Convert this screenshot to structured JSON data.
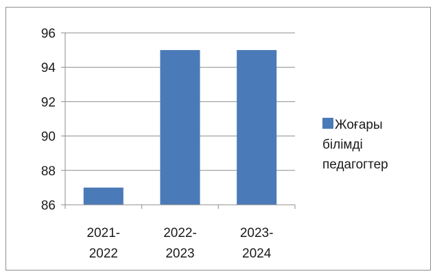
{
  "chart_data": {
    "type": "bar",
    "categories": [
      "2021-\n2022",
      "2022-\n2023",
      "2023-\n2024"
    ],
    "series": [
      {
        "name": "Жоғары\nбілімді\nпедагогтер",
        "values": [
          87,
          95,
          95
        ],
        "color": "#4a7ab8"
      }
    ],
    "ylim": [
      86,
      96
    ],
    "yticks": [
      "86",
      "88",
      "90",
      "92",
      "94",
      "96"
    ],
    "legend_position": "right",
    "grid": true
  }
}
